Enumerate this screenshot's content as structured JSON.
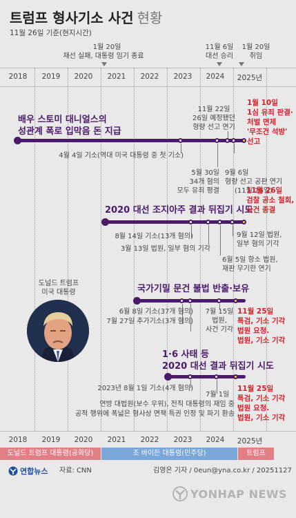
{
  "title": "트럼프 형사기소 사건",
  "title_suffix": "현황",
  "subtitle": "11월 26일 기준(현지시간)",
  "years": [
    "2018",
    "2019",
    "2020",
    "2021",
    "2022",
    "2023",
    "2024",
    "2025년"
  ],
  "top_notes": {
    "reelection_fail_1": "1월 20일",
    "reelection_fail_2": "재선 실패, 대통령 임기 종료",
    "elected_1": "11월 6일",
    "elected_2": "대선 승리",
    "inaug_1": "1월 20일",
    "inaug_2": "취임"
  },
  "case1": {
    "title_1": "배우 스토미 대니얼스의",
    "title_2": "성관계 폭로 입막음 돈 지급",
    "indict": "4월 4일 기소(역대 미국 대통령 중 첫 기소)",
    "verdict_1": "5월 30일",
    "verdict_2": "34개 혐의",
    "verdict_3": "모두 유죄 평결",
    "sent_sched_1": "11월 22일",
    "sent_sched_2": "26일 예정됐던",
    "sent_sched_3": "형량 선고 연기",
    "sep6_1": "9월 6일",
    "sep6_2": "형량 선고 공판 연기",
    "sep6_3": "(11월 26일)",
    "red_1": "1월 10일",
    "red_2": "1심 유죄 판결·",
    "red_3": "처벌 면제",
    "red_4": "'무조건 석방'",
    "red_5": "선고"
  },
  "case2": {
    "title": "2020 대선 조지아주 결과 뒤집기 시도",
    "indict": "8월 14일 기소(13개 혐의)",
    "mar13": "3월 13일 법원, 일부 혐의 기각",
    "jun5_1": "6월 5일 항소 법원,",
    "jun5_2": "재판 무기한 연기",
    "sep12_1": "9월 12일 법원,",
    "sep12_2": "일부 혐의 기각",
    "red_1": "11월 26일",
    "red_2": "검찰 공소 철회,",
    "red_3": "사건 종결"
  },
  "case3": {
    "title": "국가기밀 문건 불법 반출·보유",
    "indict1": "6월 8일 기소(37개 혐의)",
    "indict2": "7월 27일 추가기소(3개 혐의)",
    "jul15_1": "7월 15일",
    "jul15_2": "법원,",
    "jul15_3": "사건 기각",
    "red_1": "11월 25일",
    "red_2": "특검, 기소 기각",
    "red_3": "법원 요청.",
    "red_4": "법원, 기소 기각"
  },
  "case4": {
    "title_1": "1·6 사태 등",
    "title_2": "2020 대선 결과 뒤집기 시도",
    "indict": "2023년 8월 1일 기소(4개 혐의)",
    "jul1_1": "7월 1일",
    "jul1_2": "연방 대법원(보수 우위), 전직 대통령의 재임 중",
    "jul1_3": "공적 행위에 폭넓은 형사상 면책 특권 인정 및 파기 환송",
    "red_1": "11월 25일",
    "red_2": "특검, 기소 기각",
    "red_3": "법원 요청.",
    "red_4": "법원, 기소 기각"
  },
  "photo": {
    "caption_1": "도널드 트럼프",
    "caption_2": "미국 대통령"
  },
  "terms": {
    "t1": "도널드 트럼프 대통령(공화당)",
    "t2": "조 바이든 대통령(민주당)",
    "t3": "트럼프"
  },
  "footer": {
    "logo": "연합뉴스",
    "source": "자료: CNN",
    "byline": "김영은 기자 / 0eun@yna.co.kr / 20251127",
    "watermark": "YONHAP NEWS"
  }
}
